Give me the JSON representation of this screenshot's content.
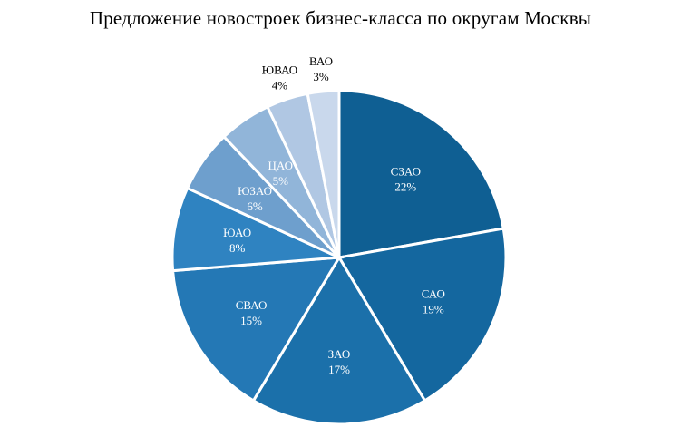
{
  "chart_data": {
    "type": "pie",
    "title": "Предложение новостроек бизнес-класса  по округам Москвы",
    "slices": [
      {
        "name": "СЗАО",
        "value": 22,
        "label": "22%",
        "color": "#0f5f93",
        "text_color": "#ffffff"
      },
      {
        "name": "САО",
        "value": 19,
        "label": "19%",
        "color": "#14679f",
        "text_color": "#ffffff"
      },
      {
        "name": "ЗАО",
        "value": 17,
        "label": "17%",
        "color": "#1b70aa",
        "text_color": "#ffffff"
      },
      {
        "name": "СВАО",
        "value": 15,
        "label": "15%",
        "color": "#2478b5",
        "text_color": "#ffffff"
      },
      {
        "name": "ЮАО",
        "value": 8,
        "label": "8%",
        "color": "#2f83c1",
        "text_color": "#ffffff"
      },
      {
        "name": "ЮЗАО",
        "value": 6,
        "label": "6%",
        "color": "#6e9fcd",
        "text_color": "#ffffff"
      },
      {
        "name": "ЦАО",
        "value": 5,
        "label": "5%",
        "color": "#91b5d9",
        "text_color": "#ffffff"
      },
      {
        "name": "ЮВАО",
        "value": 4,
        "label": "4%",
        "color": "#b0c7e3",
        "text_color": "#333333"
      },
      {
        "name": "ВАО",
        "value": 3,
        "label": "3%",
        "color": "#c9d8ec",
        "text_color": "#333333"
      }
    ]
  }
}
